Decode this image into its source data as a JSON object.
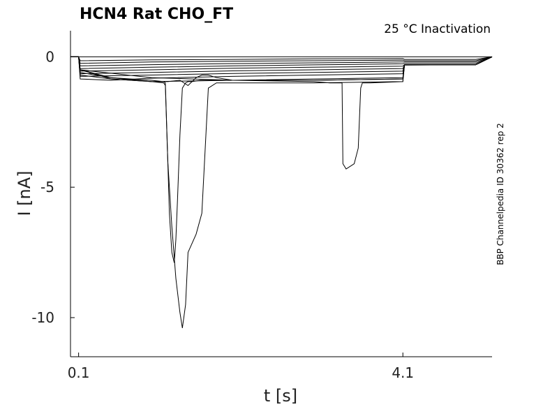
{
  "chart_data": {
    "type": "line",
    "title": "HCN4  Rat  CHO_FT",
    "annotation": "25 °C  Inactivation",
    "side_label": "BBP Channelpedia ID 30362 rep 2",
    "xlabel": "t [s]",
    "ylabel": "I [nA]",
    "xlim": [
      0.0,
      5.2
    ],
    "ylim": [
      -11.5,
      1.0
    ],
    "xticks": [
      0.1,
      4.1
    ],
    "xtick_labels": [
      "0.1",
      "4.1"
    ],
    "yticks": [
      0,
      -5,
      -10
    ],
    "ytick_labels": [
      "0",
      "-5",
      "-10"
    ],
    "grid": false,
    "series": [
      {
        "x": [
          0.0,
          0.1,
          4.1,
          5.2
        ],
        "y": [
          0.0,
          0.0,
          0.0,
          0.0
        ]
      },
      {
        "x": [
          0.0,
          0.1,
          0.12,
          1.0,
          2.0,
          3.0,
          4.1,
          4.12,
          5.0,
          5.2
        ],
        "y": [
          0.0,
          0.0,
          -0.15,
          -0.12,
          -0.1,
          -0.08,
          -0.07,
          -0.1,
          -0.1,
          0.0
        ]
      },
      {
        "x": [
          0.0,
          0.1,
          0.12,
          1.0,
          2.0,
          3.0,
          4.1,
          4.12,
          5.0,
          5.2
        ],
        "y": [
          0.0,
          0.0,
          -0.25,
          -0.2,
          -0.17,
          -0.15,
          -0.13,
          -0.15,
          -0.15,
          0.0
        ]
      },
      {
        "x": [
          0.0,
          0.1,
          0.12,
          1.0,
          2.0,
          3.0,
          4.1,
          4.12,
          5.0,
          5.2
        ],
        "y": [
          0.0,
          0.0,
          -0.35,
          -0.3,
          -0.26,
          -0.23,
          -0.2,
          -0.2,
          -0.2,
          0.0
        ]
      },
      {
        "x": [
          0.0,
          0.1,
          0.12,
          1.0,
          2.0,
          3.0,
          4.1,
          4.12,
          5.0,
          5.2
        ],
        "y": [
          0.0,
          0.0,
          -0.45,
          -0.4,
          -0.35,
          -0.31,
          -0.27,
          -0.25,
          -0.25,
          0.0
        ]
      },
      {
        "x": [
          0.0,
          0.1,
          0.12,
          1.0,
          2.0,
          3.0,
          4.1,
          4.12,
          5.0,
          5.2
        ],
        "y": [
          0.0,
          0.0,
          -0.55,
          -0.5,
          -0.44,
          -0.4,
          -0.36,
          -0.3,
          -0.3,
          0.0
        ]
      },
      {
        "x": [
          0.0,
          0.1,
          0.12,
          1.0,
          2.0,
          3.0,
          4.1,
          4.12,
          5.0,
          5.2
        ],
        "y": [
          0.0,
          0.0,
          -0.65,
          -0.6,
          -0.54,
          -0.5,
          -0.45,
          -0.32,
          -0.3,
          0.0
        ]
      },
      {
        "x": [
          0.0,
          0.1,
          0.12,
          1.0,
          2.0,
          3.0,
          4.1,
          4.12,
          5.0,
          5.2
        ],
        "y": [
          0.0,
          0.0,
          -0.75,
          -0.7,
          -0.64,
          -0.6,
          -0.55,
          -0.3,
          -0.3,
          0.0
        ]
      },
      {
        "x": [
          0.0,
          0.1,
          0.12,
          0.5,
          1.0,
          2.0,
          3.0,
          4.1,
          4.12,
          5.0,
          5.2
        ],
        "y": [
          0.0,
          0.0,
          -0.85,
          -0.9,
          -0.82,
          -0.75,
          -0.7,
          -0.65,
          -0.3,
          -0.3,
          0.0
        ]
      },
      {
        "x": [
          0.0,
          0.1,
          0.12,
          0.5,
          1.0,
          2.0,
          3.0,
          4.1,
          4.12,
          5.0,
          5.2
        ],
        "y": [
          0.0,
          0.0,
          -0.7,
          -0.85,
          -0.95,
          -0.9,
          -0.85,
          -0.8,
          -0.3,
          -0.3,
          0.0
        ]
      },
      {
        "x": [
          0.0,
          0.1,
          0.12,
          0.5,
          1.0,
          1.2,
          1.35,
          1.45,
          1.55,
          1.62,
          1.7,
          1.8,
          2.0,
          3.0,
          4.1,
          4.12,
          5.0,
          5.2
        ],
        "y": [
          0.0,
          0.0,
          -0.6,
          -0.8,
          -0.95,
          -0.95,
          -0.9,
          -1.1,
          -0.8,
          -0.7,
          -0.7,
          -0.8,
          -0.9,
          -0.9,
          -0.85,
          -0.3,
          -0.3,
          0.0
        ]
      },
      {
        "x": [
          0.0,
          0.1,
          0.12,
          0.5,
          1.0,
          1.15,
          1.17,
          1.2,
          1.25,
          1.3,
          1.35,
          1.38,
          1.42,
          1.45,
          1.55,
          1.62,
          1.7,
          1.8,
          2.0,
          3.0,
          4.1,
          4.12,
          5.0,
          5.2
        ],
        "y": [
          0.0,
          0.0,
          -0.5,
          -0.8,
          -0.9,
          -0.95,
          -1.0,
          -4.0,
          -6.5,
          -8.5,
          -9.8,
          -10.4,
          -9.5,
          -7.5,
          -6.8,
          -6.0,
          -1.2,
          -1.0,
          -1.0,
          -1.0,
          -0.95,
          -0.3,
          -0.3,
          0.0
        ]
      },
      {
        "x": [
          0.0,
          0.1,
          0.12,
          0.5,
          1.0,
          1.15,
          1.17,
          1.2,
          1.22,
          1.25,
          1.28,
          1.3,
          1.32,
          1.35,
          1.38,
          1.42,
          1.45,
          1.5,
          1.6,
          1.7,
          2.0,
          3.0,
          4.1,
          4.12,
          5.0,
          5.2
        ],
        "y": [
          0.0,
          0.0,
          -0.5,
          -0.85,
          -0.95,
          -1.0,
          -1.1,
          -4.0,
          -6.0,
          -7.5,
          -7.9,
          -7.0,
          -5.5,
          -3.0,
          -1.2,
          -1.0,
          -0.95,
          -0.95,
          -0.9,
          -0.9,
          -0.9,
          -0.9,
          -0.85,
          -0.3,
          -0.3,
          0.0
        ]
      },
      {
        "x": [
          0.0,
          0.1,
          0.12,
          1.0,
          2.0,
          3.0,
          3.2,
          3.35,
          3.36,
          3.4,
          3.5,
          3.55,
          3.58,
          3.6,
          3.7,
          4.1,
          4.12,
          5.0,
          5.2
        ],
        "y": [
          0.0,
          0.0,
          -0.5,
          -0.8,
          -0.9,
          -0.95,
          -1.0,
          -1.0,
          -4.1,
          -4.3,
          -4.1,
          -3.5,
          -1.2,
          -1.0,
          -1.0,
          -0.95,
          -0.3,
          -0.3,
          0.0
        ]
      }
    ]
  }
}
